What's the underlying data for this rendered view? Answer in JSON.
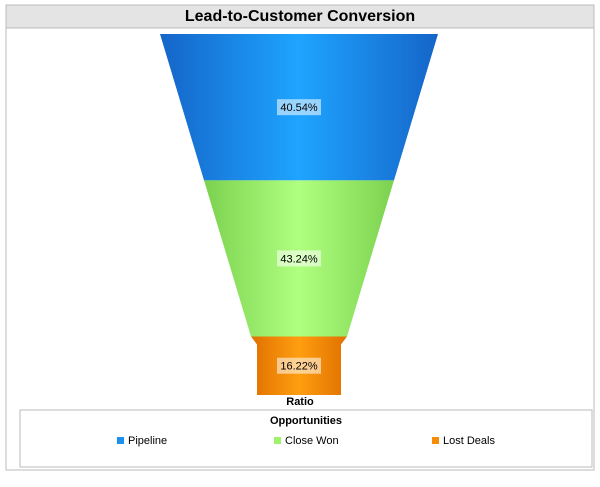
{
  "chart_data": {
    "type": "funnel",
    "title": "Lead-to-Customer Conversion",
    "categories": [
      "Pipeline",
      "Close Won",
      "Lost Deals"
    ],
    "values": [
      40.54,
      43.24,
      16.22
    ],
    "value_labels": [
      "40.54%",
      "43.24%",
      "16.22%"
    ],
    "colors": [
      "#1b90ee",
      "#9ef26c",
      "#f58d08"
    ],
    "x_label": "Ratio",
    "legend_title": "Opportunities",
    "legend": "bottom"
  }
}
